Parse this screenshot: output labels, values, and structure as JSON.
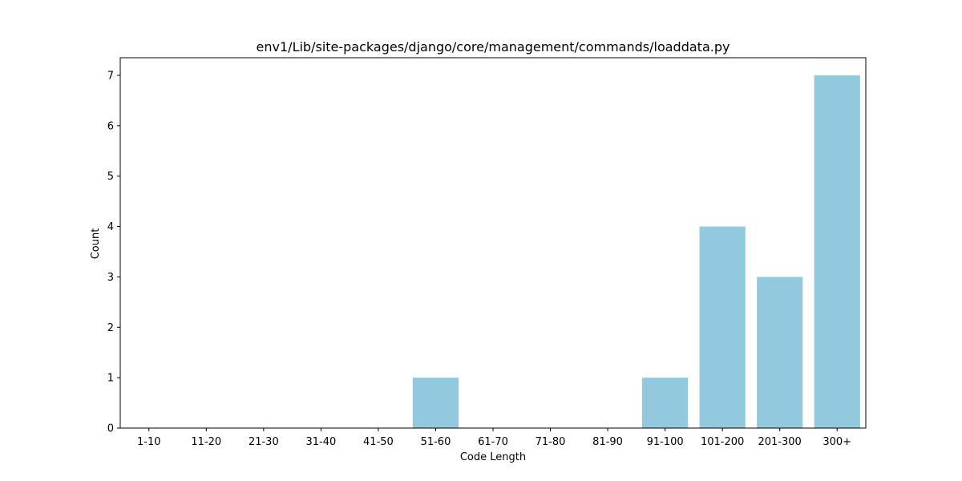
{
  "chart_data": {
    "type": "bar",
    "title": "env1/Lib/site-packages/django/core/management/commands/loaddata.py",
    "xlabel": "Code Length",
    "ylabel": "Count",
    "categories": [
      "1-10",
      "11-20",
      "21-30",
      "31-40",
      "41-50",
      "51-60",
      "61-70",
      "71-80",
      "81-90",
      "91-100",
      "101-200",
      "201-300",
      "300+"
    ],
    "values": [
      0,
      0,
      0,
      0,
      0,
      1,
      0,
      0,
      0,
      1,
      4,
      3,
      7
    ],
    "ylim": [
      0,
      7.35
    ],
    "yticks": [
      0,
      1,
      2,
      3,
      4,
      5,
      6,
      7
    ],
    "grid": false,
    "bar_color": "#92c9df"
  }
}
